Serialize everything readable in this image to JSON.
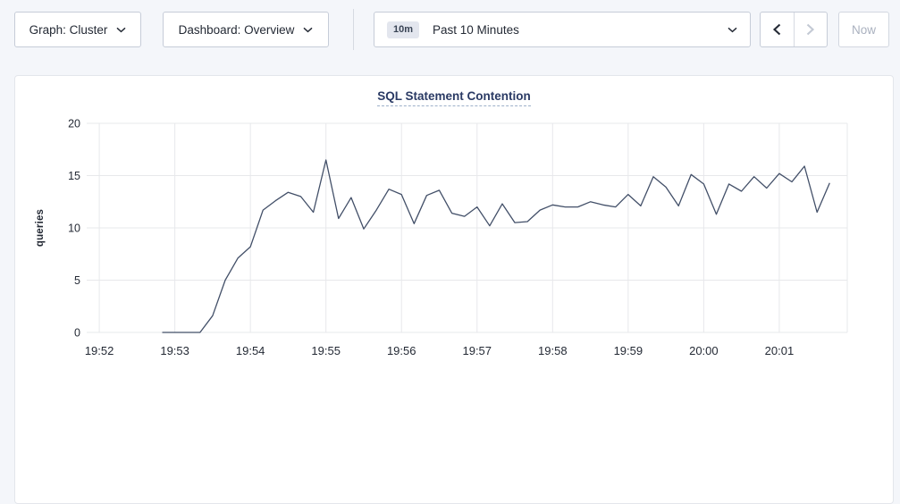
{
  "toolbar": {
    "graph_dropdown_label": "Graph: Cluster",
    "dashboard_dropdown_label": "Dashboard: Overview",
    "time_window_badge": "10m",
    "time_window_label": "Past 10 Minutes",
    "now_button_label": "Now"
  },
  "colors": {
    "page_background": "#f4f6fa",
    "text_dark": "#242a35",
    "title_navy": "#2a3a64",
    "series_line": "#424f68",
    "gridline": "#e7e8eb",
    "disabled": "#c3c9d4"
  },
  "chart_data": {
    "type": "line",
    "title": "SQL Statement Contention",
    "xlabel": "",
    "ylabel": "queries",
    "ylim": [
      0,
      20
    ],
    "y_ticks": [
      0,
      5,
      10,
      15,
      20
    ],
    "x_ticks": [
      {
        "t": 0,
        "label": "19:52"
      },
      {
        "t": 60,
        "label": "19:53"
      },
      {
        "t": 120,
        "label": "19:54"
      },
      {
        "t": 180,
        "label": "19:55"
      },
      {
        "t": 240,
        "label": "19:56"
      },
      {
        "t": 300,
        "label": "19:57"
      },
      {
        "t": 360,
        "label": "19:58"
      },
      {
        "t": 420,
        "label": "19:59"
      },
      {
        "t": 480,
        "label": "20:00"
      },
      {
        "t": 540,
        "label": "20:01"
      }
    ],
    "t_domain": [
      -10,
      594
    ],
    "grid": true,
    "legend": "none",
    "series": [
      {
        "name": "SQL Statement Contention",
        "start_t": 50,
        "interval_seconds": 10,
        "color": "#424f68",
        "values": [
          0,
          0,
          0,
          0,
          1.6,
          5.0,
          7.1,
          8.2,
          11.7,
          12.6,
          13.4,
          13.0,
          11.5,
          16.5,
          10.9,
          12.9,
          9.9,
          11.7,
          13.7,
          13.2,
          10.4,
          13.1,
          13.6,
          11.4,
          11.1,
          12.0,
          10.2,
          12.3,
          10.5,
          10.6,
          11.7,
          12.2,
          12.0,
          12.0,
          12.5,
          12.2,
          12.0,
          13.2,
          12.1,
          14.9,
          13.9,
          12.1,
          15.1,
          14.2,
          11.3,
          14.2,
          13.5,
          14.9,
          13.8,
          15.2,
          14.4,
          15.9,
          11.5,
          14.3
        ]
      }
    ]
  }
}
